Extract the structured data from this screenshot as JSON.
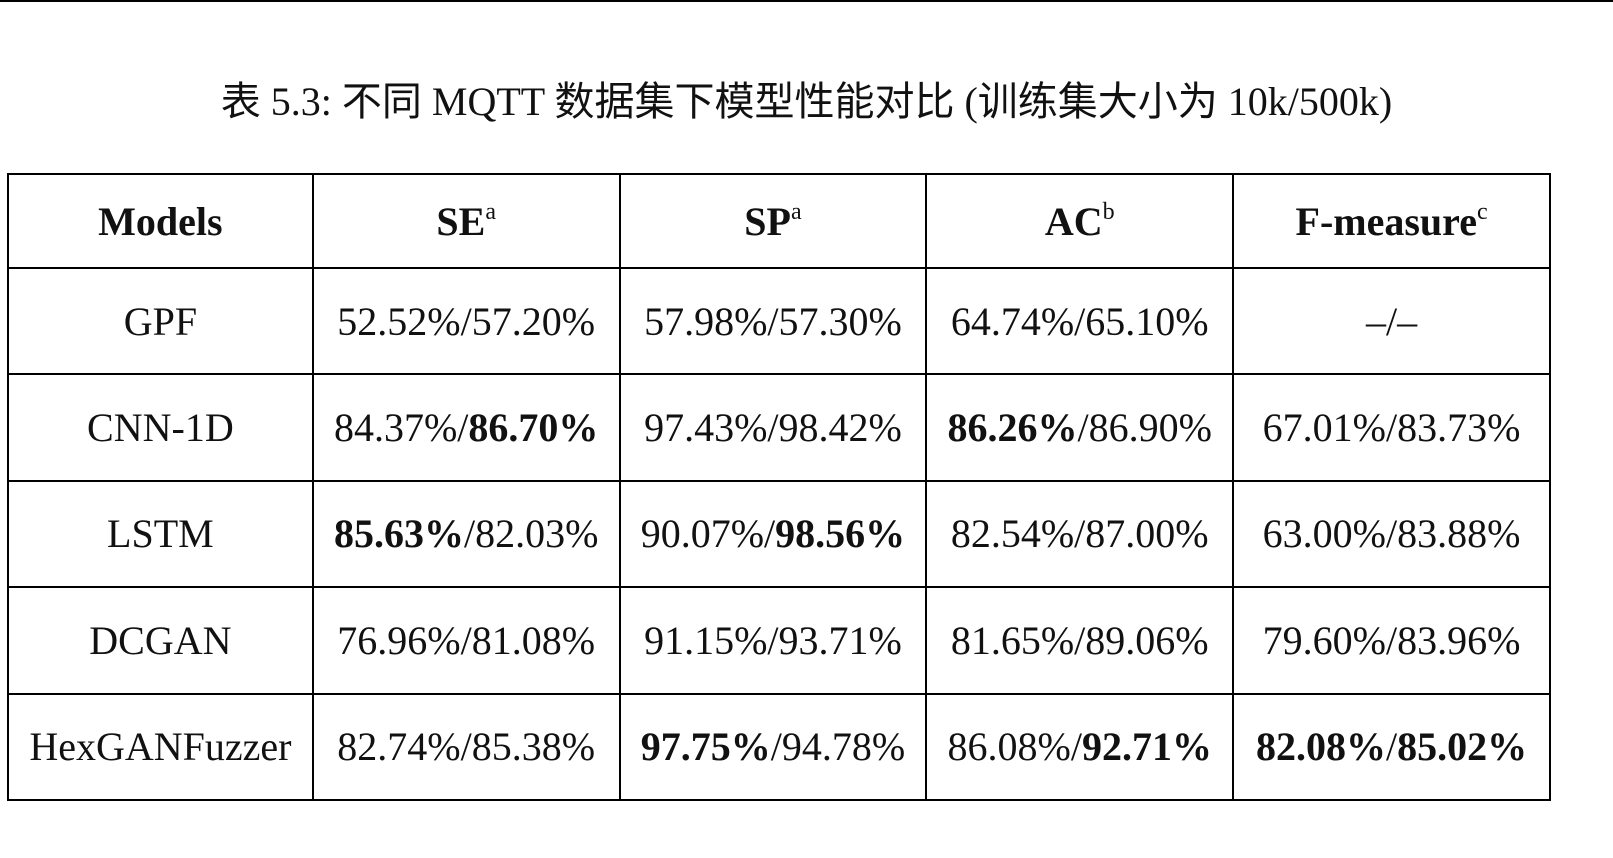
{
  "caption": "表 5.3: 不同 MQTT 数据集下模型性能对比 (训练集大小为 10k/500k)",
  "table": {
    "headers": [
      {
        "text": "Models",
        "sup": ""
      },
      {
        "text": "SE",
        "sup": "a"
      },
      {
        "text": "SP",
        "sup": "a"
      },
      {
        "text": "AC",
        "sup": "b"
      },
      {
        "text": "F-measure",
        "sup": "c"
      }
    ],
    "rows": [
      {
        "model": "GPF",
        "cells": [
          {
            "a": "52.52%",
            "a_bold": false,
            "b": "57.20%",
            "b_bold": false
          },
          {
            "a": "57.98%",
            "a_bold": false,
            "b": "57.30%",
            "b_bold": false
          },
          {
            "a": "64.74%",
            "a_bold": false,
            "b": "65.10%",
            "b_bold": false
          },
          {
            "a": "–",
            "a_bold": false,
            "b": "–",
            "b_bold": false
          }
        ]
      },
      {
        "model": "CNN-1D",
        "cells": [
          {
            "a": "84.37%",
            "a_bold": false,
            "b": "86.70%",
            "b_bold": true
          },
          {
            "a": "97.43%",
            "a_bold": false,
            "b": "98.42%",
            "b_bold": false
          },
          {
            "a": "86.26%",
            "a_bold": true,
            "b": "86.90%",
            "b_bold": false
          },
          {
            "a": "67.01%",
            "a_bold": false,
            "b": "83.73%",
            "b_bold": false
          }
        ]
      },
      {
        "model": "LSTM",
        "cells": [
          {
            "a": "85.63%",
            "a_bold": true,
            "b": "82.03%",
            "b_bold": false
          },
          {
            "a": "90.07%",
            "a_bold": false,
            "b": "98.56%",
            "b_bold": true
          },
          {
            "a": "82.54%",
            "a_bold": false,
            "b": "87.00%",
            "b_bold": false
          },
          {
            "a": "63.00%",
            "a_bold": false,
            "b": "83.88%",
            "b_bold": false
          }
        ]
      },
      {
        "model": "DCGAN",
        "cells": [
          {
            "a": "76.96%",
            "a_bold": false,
            "b": "81.08%",
            "b_bold": false
          },
          {
            "a": "91.15%",
            "a_bold": false,
            "b": "93.71%",
            "b_bold": false
          },
          {
            "a": "81.65%",
            "a_bold": false,
            "b": "89.06%",
            "b_bold": false
          },
          {
            "a": "79.60%",
            "a_bold": false,
            "b": "83.96%",
            "b_bold": false
          }
        ]
      },
      {
        "model": "HexGANFuzzer",
        "cells": [
          {
            "a": "82.74%",
            "a_bold": false,
            "b": "85.38%",
            "b_bold": false
          },
          {
            "a": "97.75%",
            "a_bold": true,
            "b": "94.78%",
            "b_bold": false
          },
          {
            "a": "86.08%",
            "a_bold": false,
            "b": "92.71%",
            "b_bold": true
          },
          {
            "a": "82.08%",
            "a_bold": true,
            "b": "85.02%",
            "b_bold": true
          }
        ]
      }
    ]
  }
}
